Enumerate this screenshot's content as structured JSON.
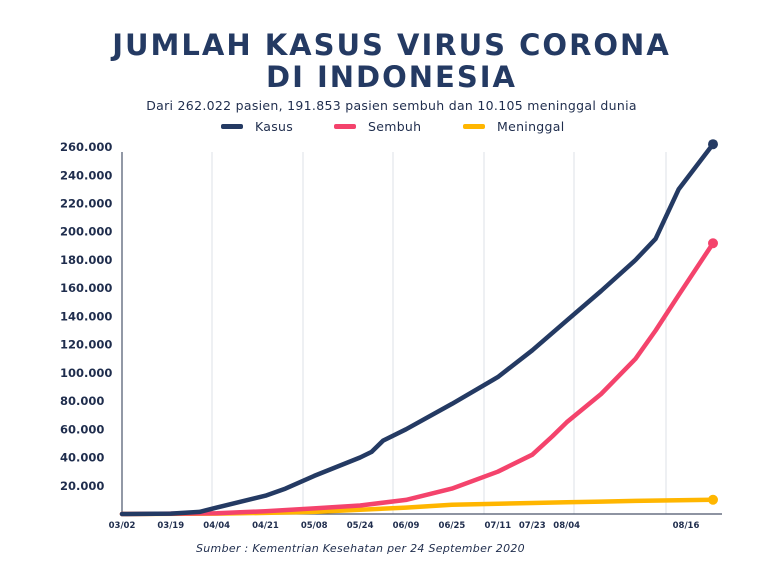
{
  "title_line1": "JUMLAH KASUS VIRUS CORONA",
  "title_line2": "DI INDONESIA",
  "subtitle": "Dari 262.022 pasien, 191.853 pasien sembuh dan 10.105 meninggal dunia",
  "source": "Sumber : Kementrian Kesehatan per 24 September 2020",
  "chart_data": {
    "type": "line",
    "title": "JUMLAH KASUS VIRUS CORONA DI INDONESIA",
    "subtitle": "Dari 262.022 pasien, 191.853 pasien sembuh dan 10.105 meninggal dunia",
    "xlabel": "",
    "ylabel": "",
    "ylim": [
      0,
      265000
    ],
    "grid": "vertical",
    "legend_position": "top",
    "x_ticks": [
      "03/02",
      "03/19",
      "04/04",
      "04/21",
      "05/08",
      "05/24",
      "06/09",
      "06/25",
      "07/11",
      "07/23",
      "08/04",
      "08/16"
    ],
    "y_ticks": [
      {
        "value": 20000,
        "label": "20.000"
      },
      {
        "value": 40000,
        "label": "40.000"
      },
      {
        "value": 60000,
        "label": "60.000"
      },
      {
        "value": 80000,
        "label": "80.000"
      },
      {
        "value": 100000,
        "label": "100.000"
      },
      {
        "value": 120000,
        "label": "120.000"
      },
      {
        "value": 140000,
        "label": "140.000"
      },
      {
        "value": 160000,
        "label": "160.000"
      },
      {
        "value": 180000,
        "label": "180.000"
      },
      {
        "value": 200000,
        "label": "200.000"
      },
      {
        "value": 220000,
        "label": "220.000"
      },
      {
        "value": 240000,
        "label": "240.000"
      },
      {
        "value": 260000,
        "label": "260.000"
      }
    ],
    "series": [
      {
        "name": "Kasus",
        "color": "#243a63",
        "points": [
          [
            "03/02",
            0
          ],
          [
            "03/19",
            300
          ],
          [
            "03/29",
            1500
          ],
          [
            "04/04",
            4500
          ],
          [
            "04/21",
            13000
          ],
          [
            "04/28",
            18000
          ],
          [
            "05/08",
            27000
          ],
          [
            "05/24",
            40000
          ],
          [
            "05/28",
            44000
          ],
          [
            "06/01",
            52000
          ],
          [
            "06/09",
            60000
          ],
          [
            "06/25",
            78000
          ],
          [
            "07/11",
            97000
          ],
          [
            "07/23",
            116000
          ],
          [
            "08/04",
            137000
          ],
          [
            "08/16",
            158000
          ],
          [
            "08/28",
            180000
          ],
          [
            "09/04",
            195000
          ],
          [
            "09/12",
            230000
          ],
          [
            "09/24",
            262022
          ]
        ]
      },
      {
        "name": "Sembuh",
        "color": "#f4436c",
        "points": [
          [
            "03/02",
            0
          ],
          [
            "04/04",
            500
          ],
          [
            "04/21",
            2000
          ],
          [
            "05/08",
            4000
          ],
          [
            "05/24",
            6000
          ],
          [
            "06/09",
            10000
          ],
          [
            "06/25",
            18000
          ],
          [
            "07/11",
            30000
          ],
          [
            "07/23",
            42000
          ],
          [
            "07/30",
            55000
          ],
          [
            "08/04",
            65000
          ],
          [
            "08/16",
            85000
          ],
          [
            "08/28",
            110000
          ],
          [
            "09/04",
            130000
          ],
          [
            "09/12",
            155000
          ],
          [
            "09/24",
            191853
          ]
        ]
      },
      {
        "name": "Meninggal",
        "color": "#ffb600",
        "points": [
          [
            "03/02",
            0
          ],
          [
            "04/04",
            300
          ],
          [
            "04/21",
            800
          ],
          [
            "05/08",
            1500
          ],
          [
            "05/24",
            3000
          ],
          [
            "06/09",
            4500
          ],
          [
            "06/25",
            6500
          ],
          [
            "07/11",
            7300
          ],
          [
            "07/23",
            7800
          ],
          [
            "08/04",
            8300
          ],
          [
            "08/16",
            8800
          ],
          [
            "08/28",
            9300
          ],
          [
            "09/12",
            9700
          ],
          [
            "09/24",
            10105
          ]
        ]
      }
    ]
  }
}
